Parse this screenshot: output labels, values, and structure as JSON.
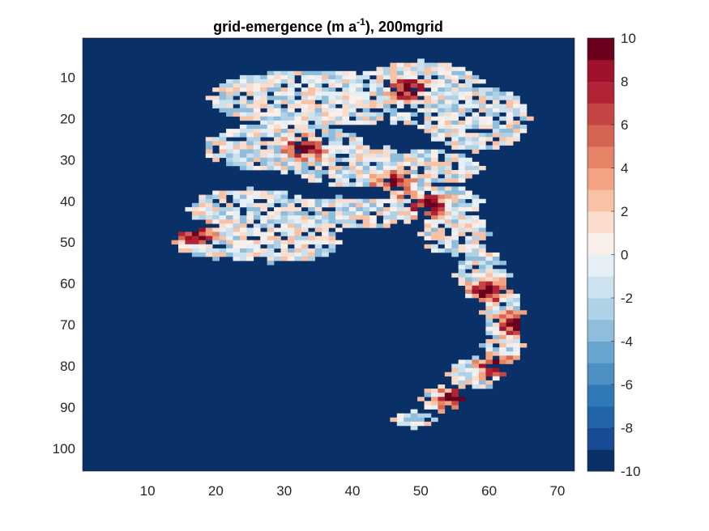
{
  "chart_data": {
    "type": "heatmap",
    "title": {
      "prefix": "grid-emergence (m a",
      "superscript": "-1",
      "suffix": "), 200mgrid"
    },
    "xlabel": "",
    "ylabel": "",
    "x_ticks": [
      "10",
      "20",
      "30",
      "40",
      "50",
      "60",
      "70"
    ],
    "y_ticks": [
      "10",
      "20",
      "30",
      "40",
      "50",
      "60",
      "70",
      "80",
      "90",
      "100"
    ],
    "xlim": [
      0.5,
      72.5
    ],
    "ylim": [
      0.5,
      105.5
    ],
    "y_reversed": true,
    "grid": false,
    "colorbar": {
      "location": "right",
      "limits": [
        -10,
        10
      ],
      "levels": 20,
      "ticks": [
        "10",
        "8",
        "6",
        "4",
        "2",
        "0",
        "-2",
        "-4",
        "-6",
        "-8",
        "-10"
      ],
      "colors": [
        "#0a3068",
        "#174b93",
        "#2165a8",
        "#2f79b6",
        "#4b8fc3",
        "#69a6cf",
        "#8ebedc",
        "#afd2e6",
        "#cde2ef",
        "#e6eff6",
        "#f9f0eb",
        "#fbddce",
        "#f8c2a6",
        "#f3a381",
        "#e58367",
        "#d66453",
        "#c44543",
        "#b22335",
        "#a0122b",
        "#69001e"
      ]
    },
    "background_value": -10,
    "data_region_note_values": "approx. per-cell values estimated from image; see cells",
    "cells": []
  }
}
